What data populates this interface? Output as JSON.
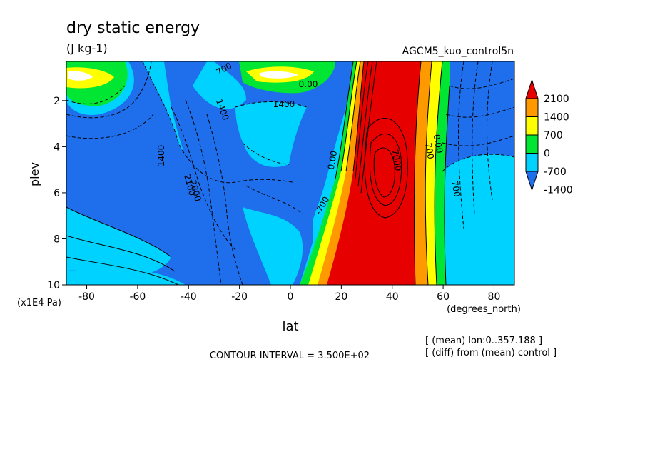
{
  "chart_data": {
    "type": "heatmap",
    "title": "dry static energy",
    "units": "(J kg-1)",
    "experiment": "AGCM5_kuo_control5n",
    "xlabel": "lat",
    "xunits": "(degrees_north)",
    "ylabel": "plev",
    "yunits": "(x1E4 Pa)",
    "xlim": [
      -88,
      88
    ],
    "ylim": [
      0.3,
      10
    ],
    "x_ticks": [
      -80,
      -60,
      -40,
      -20,
      0,
      20,
      40,
      60,
      80
    ],
    "x_tick_labels": [
      "-80",
      "-60",
      "-40",
      "-20",
      "0",
      "20",
      "40",
      "60",
      "80"
    ],
    "y_ticks": [
      2,
      4,
      6,
      8,
      10
    ],
    "y_tick_labels": [
      "2",
      "4",
      "6",
      "8",
      "10"
    ],
    "y_axis_units_label": "(x1E4 Pa)",
    "x_axis_units_label": "(degrees_north)",
    "contour_interval_text": "CONTOUR INTERVAL = 3.500E+02",
    "notes": [
      "[ (mean) lon:0..357.188 ]",
      "[ (diff) from (mean) control ]"
    ],
    "colorbar": {
      "levels": [
        -1400,
        -700,
        0,
        700,
        1400,
        2100
      ],
      "labels": [
        "2100",
        "1400",
        "700",
        "0",
        "-700",
        "-1400"
      ],
      "colors": [
        "#1f6eeb",
        "#00d2ff",
        "#00e632",
        "#ffff00",
        "#ff9900",
        "#e60000"
      ]
    },
    "contour_labels": [
      "1400",
      "700",
      "1400",
      "0.00",
      "1400",
      "2800",
      "2100",
      "0.00",
      "-700",
      "7000",
      "0.00",
      "700",
      "700"
    ]
  }
}
